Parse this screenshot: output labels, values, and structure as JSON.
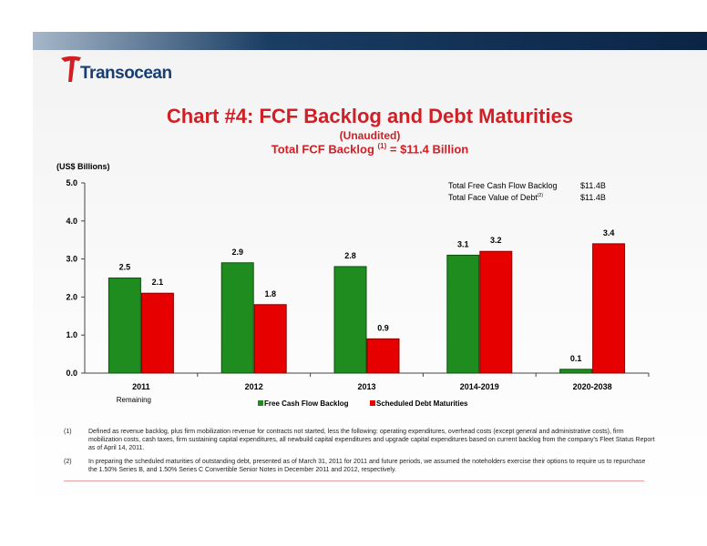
{
  "logo": {
    "text": "Transocean"
  },
  "title": "Chart #4: FCF Backlog and Debt Maturities",
  "subtitle": "(Unaudited)",
  "subtitle2": {
    "prefix": "Total FCF Backlog ",
    "sup": "(1)",
    "suffix": " = $11.4 Billion"
  },
  "unit_label": "(US$ Billions)",
  "summary": {
    "fcf_label": "Total Free Cash Flow Backlog",
    "fcf_value": "$11.4B",
    "debt_label": "Total Face Value of Debt",
    "debt_sup": "(2)",
    "debt_value": "$11.4B"
  },
  "colors": {
    "fcf": "#1e8c1e",
    "debt": "#e60000",
    "title": "#d11f26"
  },
  "chart_data": {
    "type": "bar",
    "categories": [
      "2011",
      "2012",
      "2013",
      "2014-2019",
      "2020-2038"
    ],
    "category_sublabel": "Remaining",
    "series": [
      {
        "name": "Free Cash Flow Backlog",
        "values": [
          2.5,
          2.9,
          2.8,
          3.1,
          0.1
        ]
      },
      {
        "name": "Scheduled Debt Maturities",
        "values": [
          2.1,
          1.8,
          0.9,
          3.2,
          3.4
        ]
      }
    ],
    "ylim": [
      0,
      5
    ],
    "yticks": [
      "0.0",
      "1.0",
      "2.0",
      "3.0",
      "4.0",
      "5.0"
    ],
    "legend": "bottom",
    "grid": false
  },
  "footnotes": [
    {
      "num": "(1)",
      "text": "Defined as revenue backlog, plus firm mobilization revenue for contracts not started, less the following:  operating expenditures, overhead costs (except general and administrative costs), firm mobilization costs, cash taxes, firm sustaining capital expenditures, all newbuild capital expenditures and upgrade capital expenditures based on current backlog from the company's Fleet Status Report as of April 14, 2011."
    },
    {
      "num": "(2)",
      "text": "In preparing the scheduled maturities of outstanding debt, presented as of March 31, 2011 for 2011 and future periods, we assumed the noteholders exercise their options to require us to repurchase the 1.50% Series B, and 1.50% Series C Convertible Senior Notes in December 2011 and 2012, respectively."
    }
  ]
}
